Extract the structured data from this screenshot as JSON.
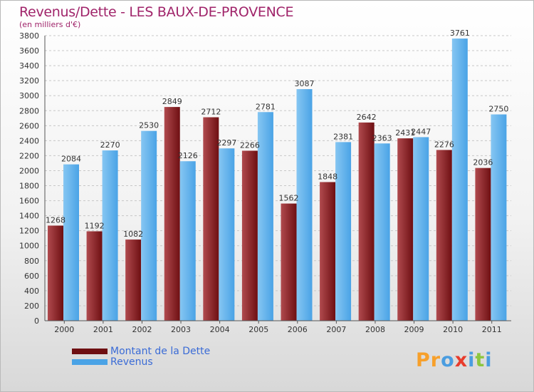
{
  "title": "Revenus/Dette - LES BAUX-DE-PROVENCE",
  "subtitle": "(en milliers d'€)",
  "logo": {
    "text": "Proxiti",
    "letter_colors": [
      "#f7a02b",
      "#f7a02b",
      "#4a9de0",
      "#e83c2c",
      "#4a9de0",
      "#8cc63f",
      "#4a9de0"
    ]
  },
  "colors": {
    "dette": "#6e0f12",
    "dette_light": "#b04a4e",
    "revenus": "#4aa3e6",
    "revenus_light": "#86c6f2",
    "grid": "#c7c7c7",
    "axis_text": "#333333"
  },
  "chart_data": {
    "type": "bar",
    "title": "Revenus/Dette - LES BAUX-DE-PROVENCE",
    "subtitle": "(en milliers d'€)",
    "xlabel": "",
    "ylabel": "",
    "ylim": [
      0,
      3800
    ],
    "ytick_step": 200,
    "yticks": [
      "0",
      "200",
      "400",
      "600",
      "800",
      "1000",
      "1200",
      "1400",
      "1600",
      "1800",
      "2000",
      "2200",
      "2400",
      "2600",
      "2800",
      "3000",
      "3200",
      "3400",
      "3600",
      "3800"
    ],
    "categories": [
      "2000",
      "2001",
      "2002",
      "2003",
      "2004",
      "2005",
      "2006",
      "2007",
      "2008",
      "2009",
      "2010",
      "2011"
    ],
    "series": [
      {
        "name": "Montant de la Dette",
        "values": [
          1268,
          1192,
          1082,
          2849,
          2712,
          2266,
          1562,
          1848,
          2642,
          2431,
          2276,
          2036
        ]
      },
      {
        "name": "Revenus",
        "values": [
          2084,
          2270,
          2530,
          2126,
          2297,
          2781,
          3087,
          2381,
          2363,
          2447,
          3761,
          2750
        ]
      }
    ],
    "legend_position": "bottom-left",
    "grid": true
  }
}
